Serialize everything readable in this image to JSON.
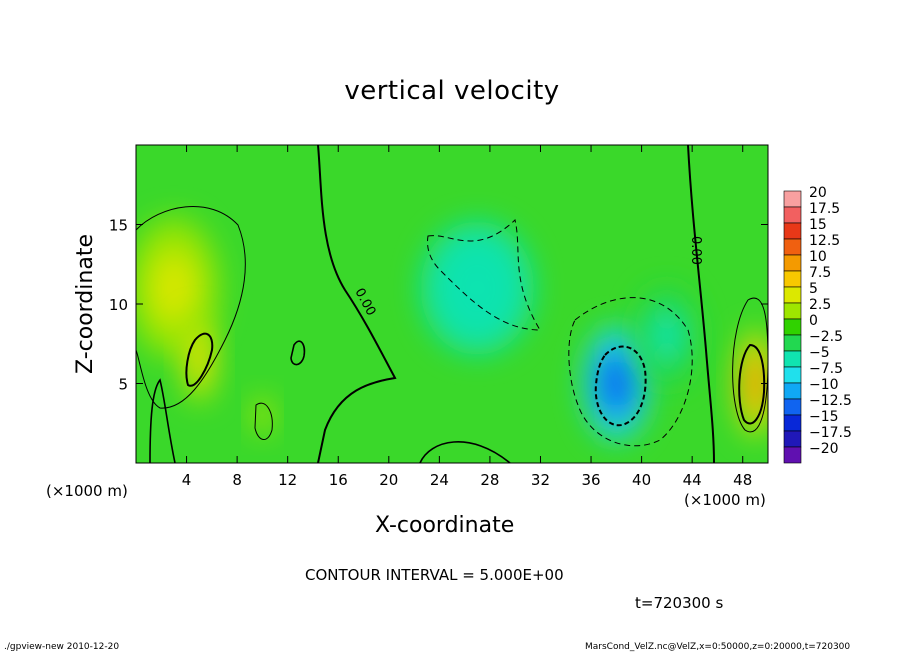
{
  "title": "vertical velocity",
  "x_unit_left": "(×1000 m)",
  "x_unit_right": "(×1000 m)",
  "contour_text": "CONTOUR INTERVAL = 5.000E+00",
  "time_text": "t=720300 s",
  "footer_left": "./gpview-new  2010-12-20",
  "footer_right": "MarsCond_VelZ.nc@VelZ,x=0:50000,z=0:20000,t=720300",
  "chart_data": {
    "type": "heatmap",
    "title": "vertical velocity",
    "xlabel": "X-coordinate",
    "ylabel": "Z-coordinate",
    "xlim": [
      0,
      50
    ],
    "ylim": [
      0,
      20
    ],
    "xticks": [
      4,
      8,
      12,
      16,
      20,
      24,
      28,
      32,
      36,
      40,
      44,
      48
    ],
    "yticks": [
      5,
      10,
      15
    ],
    "grid": false,
    "contour_labels": [
      {
        "text": "0.00",
        "x": 17.8,
        "z": 10.0
      },
      {
        "text": "0.00",
        "x": 44.5,
        "z": 13.1
      }
    ],
    "colorbar": {
      "levels": [
        "20",
        "17.5",
        "15",
        "12.5",
        "10",
        "7.5",
        "5",
        "2.5",
        "0",
        "−2.5",
        "−5",
        "−7.5",
        "−10",
        "−12.5",
        "−15",
        "−17.5",
        "−20"
      ],
      "colors": [
        "#f8a0a0",
        "#f26060",
        "#e83818",
        "#f06010",
        "#f49a00",
        "#f8c800",
        "#dce800",
        "#9ee600",
        "#30d200",
        "#22d850",
        "#10e4b0",
        "#20e0ec",
        "#10a8f4",
        "#1064f0",
        "#0828d8",
        "#2018b8",
        "#6010b0"
      ]
    },
    "features": [
      {
        "x": 3,
        "z": 11,
        "value": 7,
        "sx": 2.6,
        "sz": 3.2
      },
      {
        "x": 5,
        "z": 6.5,
        "value": 8,
        "sx": 1.0,
        "sz": 2.0
      },
      {
        "x": 49,
        "z": 5,
        "value": 12,
        "sx": 1.1,
        "sz": 2.4
      },
      {
        "x": 38,
        "z": 5,
        "value": -12,
        "sx": 1.9,
        "sz": 2.6
      },
      {
        "x": 27,
        "z": 11,
        "value": -5,
        "sx": 3.2,
        "sz": 3.0
      },
      {
        "x": 10,
        "z": 3,
        "value": 5,
        "sx": 0.6,
        "sz": 0.9
      },
      {
        "x": 42,
        "z": 8,
        "value": -3,
        "sx": 1.8,
        "sz": 2.2
      }
    ]
  }
}
